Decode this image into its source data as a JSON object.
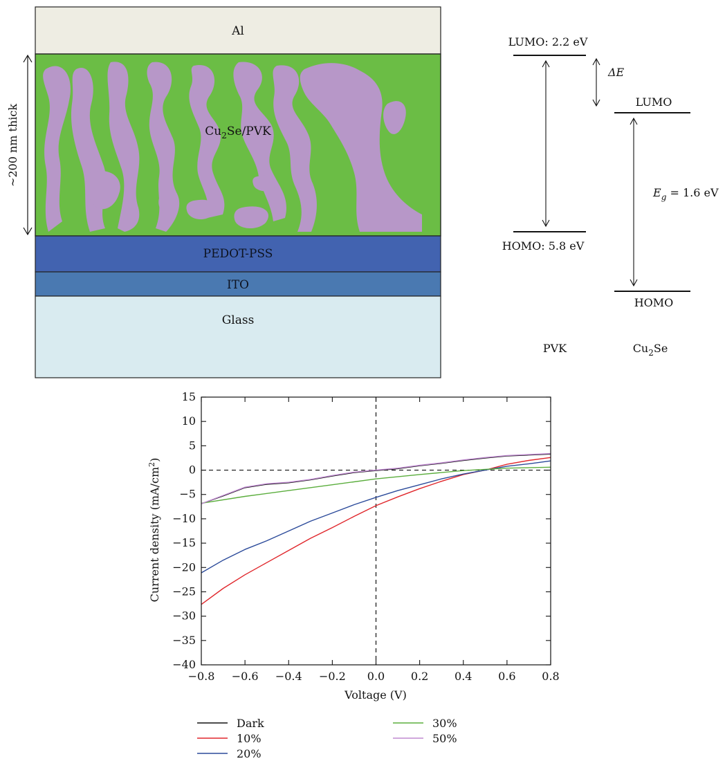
{
  "device": {
    "layers": {
      "al": "Al",
      "active_main": "Cu",
      "active_sub": "2",
      "active_rest": "Se/PVK",
      "pedot": "PEDOT-PSS",
      "ito": "ITO",
      "glass": "Glass"
    },
    "thickness_label": "~200 nm thick",
    "colors": {
      "al": "#eeede3",
      "active_green": "#6bbd45",
      "active_purple": "#b797c8",
      "pedot": "#4263b0",
      "ito": "#4a79b1",
      "glass": "#d9ebf0"
    }
  },
  "energy": {
    "pvk_lumo": "LUMO: 2.2 eV",
    "pvk_homo": "HOMO: 5.8 eV",
    "delta_e": "ΔE",
    "cu_lumo": "LUMO",
    "cu_homo": "HOMO",
    "eg_main": "E",
    "eg_sub": "g",
    "eg_rest": " = 1.6 eV",
    "pvk_label": "PVK",
    "cu_label_main": "Cu",
    "cu_label_sub": "2",
    "cu_label_rest": "Se"
  },
  "chart_data": {
    "type": "line",
    "xlabel": "Voltage (V)",
    "ylabel_main": "Current density (mA/cm",
    "ylabel_sup": "2",
    "ylabel_end": ")",
    "xlim": [
      -0.8,
      0.8
    ],
    "ylim": [
      -40,
      15
    ],
    "xticks": [
      -0.8,
      -0.6,
      -0.4,
      -0.2,
      0.0,
      0.2,
      0.4,
      0.6,
      0.8
    ],
    "xtick_labels": [
      "−0.8",
      "−0.6",
      "−0.4",
      "−0.2",
      "0.0",
      "0.2",
      "0.4",
      "0.6",
      "0.8"
    ],
    "yticks": [
      15,
      10,
      5,
      0,
      -5,
      -10,
      -15,
      -20,
      -25,
      -30,
      -35,
      -40
    ],
    "ytick_labels": [
      "15",
      "10",
      "5",
      "0",
      "−5",
      "−10",
      "−15",
      "−20",
      "−25",
      "−30",
      "−35",
      "−40"
    ],
    "legend_position": "bottom",
    "series": [
      {
        "name": "Dark",
        "color": "#111111",
        "x": [
          -0.8,
          -0.7,
          -0.6,
          -0.5,
          -0.4,
          -0.3,
          -0.2,
          -0.1,
          0.0,
          0.1,
          0.2,
          0.3,
          0.4,
          0.5,
          0.6,
          0.7,
          0.8
        ],
        "y": [
          -6.9,
          -5.3,
          -3.6,
          -2.9,
          -2.6,
          -2.0,
          -1.2,
          -0.5,
          -0.1,
          0.3,
          0.9,
          1.4,
          2.0,
          2.5,
          2.9,
          3.1,
          3.3
        ]
      },
      {
        "name": "10%",
        "color": "#e0262b",
        "x": [
          -0.8,
          -0.7,
          -0.6,
          -0.5,
          -0.4,
          -0.3,
          -0.2,
          -0.1,
          0.0,
          0.1,
          0.2,
          0.3,
          0.4,
          0.5,
          0.6,
          0.7,
          0.8
        ],
        "y": [
          -27.6,
          -24.3,
          -21.5,
          -19.0,
          -16.5,
          -14.0,
          -11.8,
          -9.5,
          -7.3,
          -5.5,
          -3.8,
          -2.3,
          -0.9,
          0.0,
          1.2,
          2.0,
          2.6
        ]
      },
      {
        "name": "20%",
        "color": "#2b4a9a",
        "x": [
          -0.8,
          -0.7,
          -0.6,
          -0.5,
          -0.4,
          -0.3,
          -0.2,
          -0.1,
          0.0,
          0.1,
          0.2,
          0.3,
          0.4,
          0.5,
          0.6,
          0.7,
          0.8
        ],
        "y": [
          -21.1,
          -18.5,
          -16.3,
          -14.5,
          -12.5,
          -10.5,
          -8.8,
          -7.1,
          -5.6,
          -4.2,
          -3.0,
          -1.8,
          -0.8,
          0.0,
          0.8,
          1.3,
          1.9
        ]
      },
      {
        "name": "30%",
        "color": "#5aad3c",
        "x": [
          -0.8,
          -0.6,
          -0.4,
          -0.2,
          0.0,
          0.2,
          0.4,
          0.6,
          0.8
        ],
        "y": [
          -6.8,
          -5.4,
          -4.2,
          -3.0,
          -1.8,
          -0.9,
          -0.1,
          0.4,
          0.6
        ]
      },
      {
        "name": "50%",
        "color": "#c08ad1",
        "x": [
          -0.8,
          -0.7,
          -0.6,
          -0.5,
          -0.4,
          -0.3,
          -0.2,
          -0.1,
          0.0,
          0.1,
          0.2,
          0.3,
          0.4,
          0.5,
          0.6,
          0.7,
          0.8
        ],
        "y": [
          -6.9,
          -5.2,
          -3.5,
          -2.8,
          -2.5,
          -1.9,
          -1.1,
          -0.4,
          0.0,
          0.4,
          1.0,
          1.5,
          2.1,
          2.6,
          3.0,
          3.2,
          3.4
        ]
      }
    ]
  }
}
